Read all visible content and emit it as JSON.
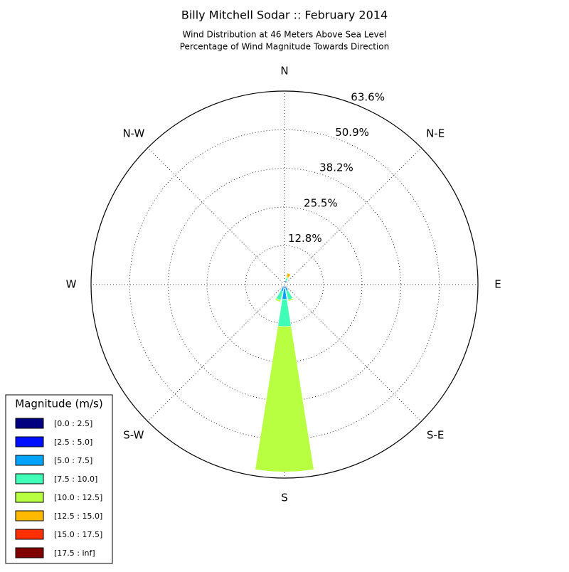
{
  "chart_data": {
    "type": "windrose",
    "title": "Billy Mitchell Sodar :: February 2014",
    "subtitle": [
      "Wind Distribution at 46 Meters Above Sea Level",
      "Percentage of Wind Magnitude Towards Direction"
    ],
    "categories": [
      "N",
      null,
      "N-E",
      null,
      "E",
      null,
      "S-E",
      null,
      "S",
      null,
      "S-W",
      null,
      "W",
      null,
      "N-W",
      null
    ],
    "rlim": [
      0,
      63.6
    ],
    "rticks": [
      {
        "value": 12.8,
        "label": "12.8%"
      },
      {
        "value": 25.5,
        "label": "25.5%"
      },
      {
        "value": 38.2,
        "label": "38.2%"
      },
      {
        "value": 50.9,
        "label": "50.9%"
      },
      {
        "value": 63.6,
        "label": "63.6%"
      }
    ],
    "grid": true,
    "legend_title": "Magnitude (m/s)",
    "legend_position": "lower left",
    "series": [
      {
        "name": "[0.0 : 2.5]",
        "color": "#000080",
        "values": [
          0.1,
          0.1,
          0,
          0,
          0,
          0,
          0,
          0.2,
          0.3,
          0.2,
          0,
          0,
          0,
          0,
          0,
          0.1
        ]
      },
      {
        "name": "[2.5 : 5.0]",
        "color": "#0010ff",
        "values": [
          0,
          0.3,
          0,
          0,
          0,
          0,
          0,
          0.5,
          1.0,
          0.6,
          0,
          0,
          0,
          0,
          0,
          0
        ]
      },
      {
        "name": "[5.0 : 7.5]",
        "color": "#00a4ff",
        "values": [
          0,
          1.0,
          0,
          0,
          0,
          0,
          0,
          1.5,
          3.5,
          1.5,
          0,
          0,
          0,
          0,
          0,
          0
        ]
      },
      {
        "name": "[7.5 : 10.0]",
        "color": "#40ffb7",
        "values": [
          0,
          0.8,
          0,
          0,
          0,
          0,
          0,
          3.0,
          9.0,
          3.0,
          0,
          0,
          0,
          0,
          0,
          0
        ]
      },
      {
        "name": "[10.0 : 12.5]",
        "color": "#b7ff40",
        "values": [
          0,
          0.5,
          0,
          0,
          0,
          0,
          0,
          0.5,
          47.8,
          0.6,
          0,
          0,
          0,
          0,
          0,
          0
        ]
      },
      {
        "name": "[12.5 : 15.0]",
        "color": "#ffb900",
        "values": [
          0,
          1.2,
          0.5,
          0,
          0,
          0,
          0,
          0,
          0,
          0,
          0,
          0,
          0,
          0,
          0,
          0
        ]
      },
      {
        "name": "[15.0 : 17.5]",
        "color": "#ff3000",
        "values": [
          0,
          0,
          0,
          0,
          0,
          0,
          0,
          0,
          0,
          0,
          0,
          0,
          0,
          0,
          0,
          0
        ]
      },
      {
        "name": "[17.5 : inf]",
        "color": "#800000",
        "values": [
          0,
          0,
          0,
          0,
          0,
          0,
          0,
          0,
          0,
          0,
          0,
          0,
          0,
          0,
          0,
          0
        ]
      }
    ]
  }
}
